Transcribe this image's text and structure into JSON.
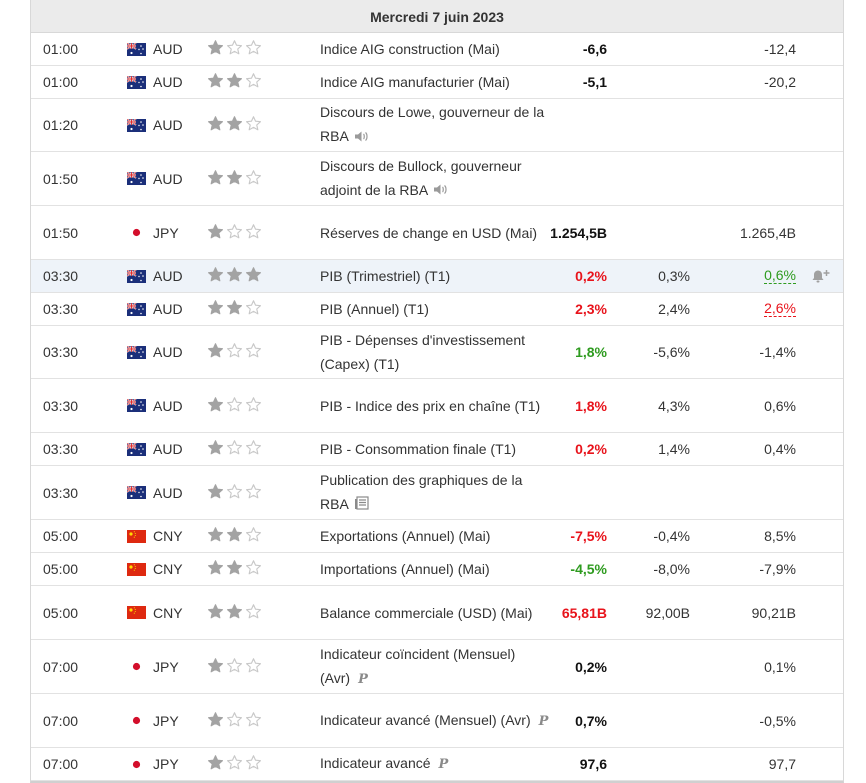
{
  "calendar": {
    "date": "Mercredi 7 juin 2023",
    "rows": [
      {
        "time": "01:00",
        "flag": "au",
        "currency": "AUD",
        "importance": 1,
        "event": "Indice AIG construction (Mai)",
        "icon": "",
        "actual": "-6,6",
        "actual_color": "black",
        "forecast": "",
        "previous": "-12,4",
        "previous_color": "",
        "h": 33
      },
      {
        "time": "01:00",
        "flag": "au",
        "currency": "AUD",
        "importance": 2,
        "event": "Indice AIG manufacturier (Mai)",
        "icon": "",
        "actual": "-5,1",
        "actual_color": "black",
        "forecast": "",
        "previous": "-20,2",
        "previous_color": "",
        "h": 33
      },
      {
        "time": "01:20",
        "flag": "au",
        "currency": "AUD",
        "importance": 2,
        "event": "Discours de Lowe, gouverneur de la RBA",
        "icon": "speaker-icon",
        "actual": "",
        "actual_color": "",
        "forecast": "",
        "previous": "",
        "previous_color": "",
        "h": 53
      },
      {
        "time": "01:50",
        "flag": "au",
        "currency": "AUD",
        "importance": 2,
        "event": "Discours de Bullock, gouverneur adjoint de la RBA",
        "icon": "speaker-icon",
        "actual": "",
        "actual_color": "",
        "forecast": "",
        "previous": "",
        "previous_color": "",
        "h": 54
      },
      {
        "time": "01:50",
        "flag": "jp",
        "currency": "JPY",
        "importance": 1,
        "event": "Réserves de change en USD (Mai)",
        "icon": "",
        "actual": "1.254,5B",
        "actual_color": "black",
        "forecast": "",
        "previous": "1.265,4B",
        "previous_color": "",
        "h": 54
      },
      {
        "time": "03:30",
        "flag": "au",
        "currency": "AUD",
        "importance": 3,
        "event": "PIB (Trimestriel) (T1)",
        "icon": "",
        "actual": "0,2%",
        "actual_color": "red",
        "forecast": "0,3%",
        "previous": "0,6%",
        "previous_color": "green",
        "h": 33,
        "highlight": true,
        "alert": true
      },
      {
        "time": "03:30",
        "flag": "au",
        "currency": "AUD",
        "importance": 2,
        "event": "PIB (Annuel) (T1)",
        "icon": "",
        "actual": "2,3%",
        "actual_color": "red",
        "forecast": "2,4%",
        "previous": "2,6%",
        "previous_color": "red",
        "h": 33
      },
      {
        "time": "03:30",
        "flag": "au",
        "currency": "AUD",
        "importance": 1,
        "event": "PIB - Dépenses d'investissement (Capex) (T1)",
        "icon": "",
        "actual": "1,8%",
        "actual_color": "green",
        "forecast": "-5,6%",
        "previous": "-1,4%",
        "previous_color": "",
        "h": 53
      },
      {
        "time": "03:30",
        "flag": "au",
        "currency": "AUD",
        "importance": 1,
        "event": "PIB - Indice des prix en chaîne (T1)",
        "icon": "",
        "actual": "1,8%",
        "actual_color": "red",
        "forecast": "4,3%",
        "previous": "0,6%",
        "previous_color": "",
        "h": 54
      },
      {
        "time": "03:30",
        "flag": "au",
        "currency": "AUD",
        "importance": 1,
        "event": "PIB - Consommation finale (T1)",
        "icon": "",
        "actual": "0,2%",
        "actual_color": "red",
        "forecast": "1,4%",
        "previous": "0,4%",
        "previous_color": "",
        "h": 33
      },
      {
        "time": "03:30",
        "flag": "au",
        "currency": "AUD",
        "importance": 1,
        "event": "Publication des graphiques de la RBA",
        "icon": "report-icon",
        "actual": "",
        "actual_color": "",
        "forecast": "",
        "previous": "",
        "previous_color": "",
        "h": 54
      },
      {
        "time": "05:00",
        "flag": "cn",
        "currency": "CNY",
        "importance": 2,
        "event": "Exportations (Annuel) (Mai)",
        "icon": "",
        "actual": "-7,5%",
        "actual_color": "red",
        "forecast": "-0,4%",
        "previous": "8,5%",
        "previous_color": "",
        "h": 33
      },
      {
        "time": "05:00",
        "flag": "cn",
        "currency": "CNY",
        "importance": 2,
        "event": "Importations (Annuel) (Mai)",
        "icon": "",
        "actual": "-4,5%",
        "actual_color": "green",
        "forecast": "-8,0%",
        "previous": "-7,9%",
        "previous_color": "",
        "h": 33
      },
      {
        "time": "05:00",
        "flag": "cn",
        "currency": "CNY",
        "importance": 2,
        "event": "Balance commerciale (USD) (Mai)",
        "icon": "",
        "actual": "65,81B",
        "actual_color": "red",
        "forecast": "92,00B",
        "previous": "90,21B",
        "previous_color": "",
        "h": 54
      },
      {
        "time": "07:00",
        "flag": "jp",
        "currency": "JPY",
        "importance": 1,
        "event": "Indicateur coïncident (Mensuel) (Avr)",
        "icon": "preliminary-icon",
        "icon_text": "P",
        "actual": "0,2%",
        "actual_color": "black",
        "forecast": "",
        "previous": "0,1%",
        "previous_color": "",
        "h": 54
      },
      {
        "time": "07:00",
        "flag": "jp",
        "currency": "JPY",
        "importance": 1,
        "event": "Indicateur avancé (Mensuel) (Avr)",
        "icon": "preliminary-icon",
        "icon_text": "P",
        "actual": "0,7%",
        "actual_color": "black",
        "forecast": "",
        "previous": "-0,5%",
        "previous_color": "",
        "h": 54
      },
      {
        "time": "07:00",
        "flag": "jp",
        "currency": "JPY",
        "importance": 1,
        "event": "Indicateur avancé",
        "icon": "preliminary-icon",
        "icon_text": "P",
        "actual": "97,6",
        "actual_color": "black",
        "forecast": "",
        "previous": "97,7",
        "previous_color": "",
        "h": 33
      }
    ]
  },
  "colors": {
    "red": "#e8131b",
    "green": "#2e9b1f",
    "star_filled": "#a3a3a3",
    "star_empty": "#c8c8c8"
  }
}
